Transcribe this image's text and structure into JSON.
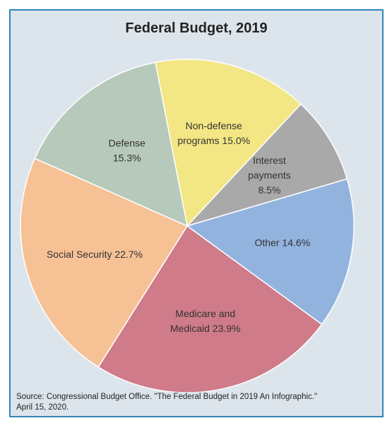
{
  "chart_data": {
    "type": "pie",
    "title": "Federal Budget, 2019",
    "slices": [
      {
        "name": "Non-defense programs",
        "label_lines": [
          "Non-defense",
          "programs 15.0%"
        ],
        "value": 15.0,
        "color": "#f3e684"
      },
      {
        "name": "Interest payments",
        "label_lines": [
          "Interest",
          "payments",
          "8.5%"
        ],
        "value": 8.5,
        "color": "#a9a9aa"
      },
      {
        "name": "Other",
        "label_lines": [
          "Other 14.6%"
        ],
        "value": 14.6,
        "color": "#93b3df"
      },
      {
        "name": "Medicare and Medicaid",
        "label_lines": [
          "Medicare and",
          "Medicaid 23.9%"
        ],
        "value": 23.9,
        "color": "#cf7b89"
      },
      {
        "name": "Social Security",
        "label_lines": [
          "Social Security 22.7%"
        ],
        "value": 22.7,
        "color": "#f6c195"
      },
      {
        "name": "Defense",
        "label_lines": [
          "Defense",
          "15.3%"
        ],
        "value": 15.3,
        "color": "#b6c9ba"
      }
    ],
    "start_angle_deg": -11
  },
  "source": {
    "line1": "Source: Congressional Budget Office. \"The Federal Budget in 2019 An Infographic.\"",
    "line2": "April 15, 2020."
  },
  "colors": {
    "background": "#dde5ec",
    "frame": "#2f86b8",
    "slice_border": "#ffffff"
  }
}
